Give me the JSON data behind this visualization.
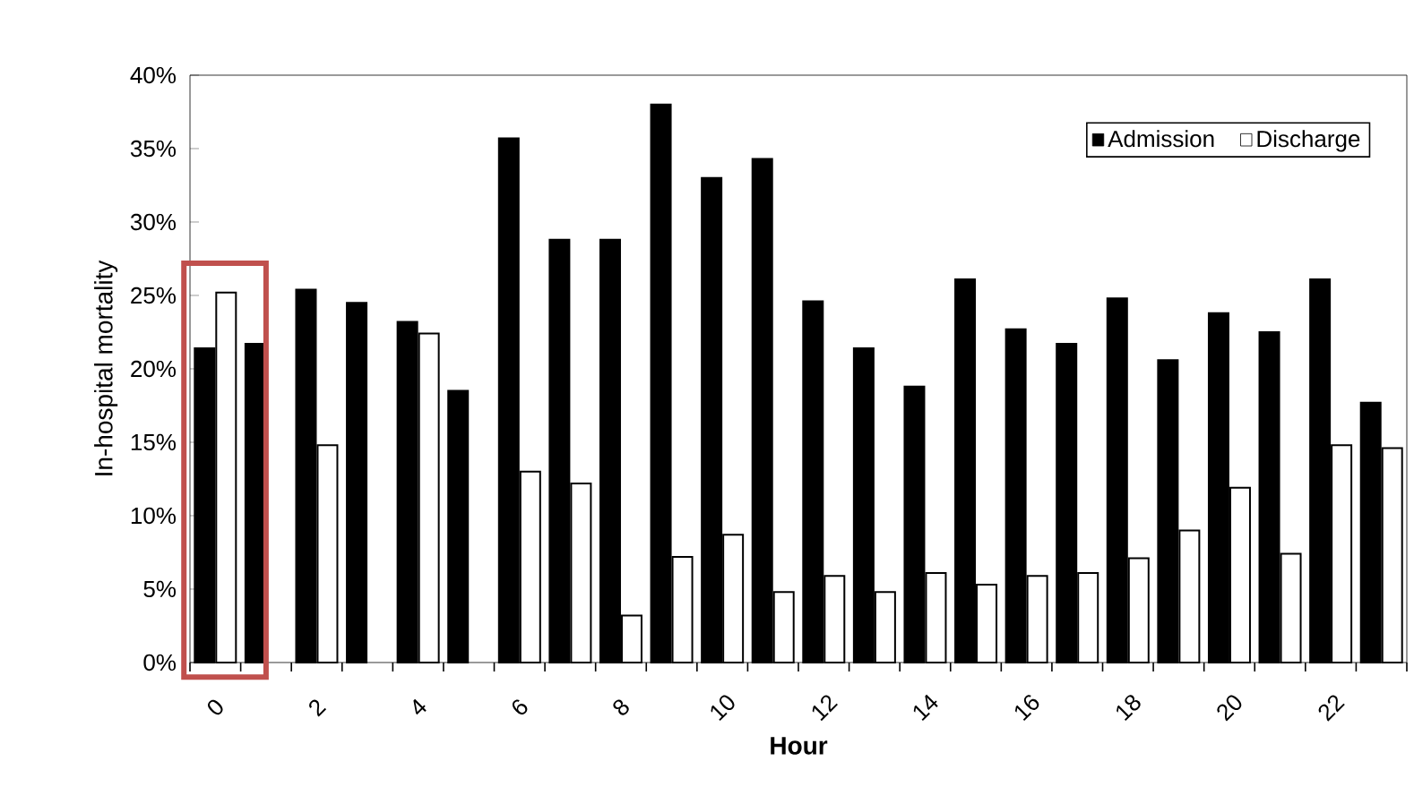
{
  "chart_data": {
    "type": "bar",
    "xlabel": "Hour",
    "ylabel": "In-hospital mortality",
    "categories": [
      "0",
      null,
      "2",
      null,
      "4",
      null,
      "6",
      null,
      "8",
      null,
      "10",
      null,
      "12",
      null,
      "14",
      null,
      "16",
      null,
      "18",
      null,
      "20",
      null,
      "22",
      null
    ],
    "series": [
      {
        "name": "Admission",
        "color": "#000000",
        "values": [
          21.4,
          21.7,
          25.4,
          24.5,
          23.2,
          18.5,
          35.7,
          28.8,
          28.8,
          38.0,
          33.0,
          34.3,
          24.6,
          21.4,
          18.8,
          26.1,
          22.7,
          21.7,
          24.8,
          20.6,
          23.8,
          22.5,
          26.1,
          17.7
        ]
      },
      {
        "name": "Discharge",
        "color": "#ffffff",
        "values": [
          25.2,
          null,
          14.8,
          null,
          22.4,
          null,
          13.0,
          12.2,
          3.2,
          7.2,
          8.7,
          4.8,
          5.9,
          4.8,
          6.1,
          5.3,
          5.9,
          6.1,
          7.1,
          9.0,
          11.9,
          7.4,
          14.8,
          14.6
        ]
      }
    ],
    "ylim": [
      0,
      40
    ],
    "yticks": [
      {
        "value": 0,
        "label": "0%"
      },
      {
        "value": 5,
        "label": "5%"
      },
      {
        "value": 10,
        "label": "10%"
      },
      {
        "value": 15,
        "label": "15%"
      },
      {
        "value": 20,
        "label": "20%"
      },
      {
        "value": 25,
        "label": "25%"
      },
      {
        "value": 30,
        "label": "30%"
      },
      {
        "value": 35,
        "label": "35%"
      },
      {
        "value": 40,
        "label": "40%"
      }
    ],
    "grid": false,
    "legend": "top right"
  }
}
